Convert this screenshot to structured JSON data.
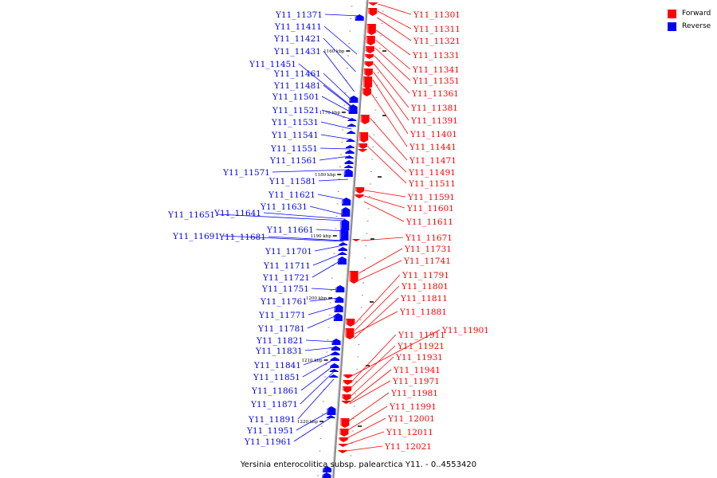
{
  "legend": {
    "forward": {
      "label": "Forward",
      "color": "#ff0000"
    },
    "reverse": {
      "label": "Reverse",
      "color": "#0000ff"
    }
  },
  "caption": "Yersinia enterocolitica subsp. palearctica Y11. - 0..4553420",
  "ticks": [
    "1160 kbp",
    "1170 kbp",
    "1180 kbp",
    "1190 kbp",
    "1200 kbp",
    "1210 kbp",
    "1220 kbp"
  ],
  "reverse_labels": [
    "Y11_11371",
    "Y11_11411",
    "Y11_11421",
    "Y11_11431",
    "Y11_11451",
    "Y11_11461",
    "Y11_11481",
    "Y11_11501",
    "Y11_11521",
    "Y11_11531",
    "Y11_11541",
    "Y11_11551",
    "Y11_11561",
    "Y11_11571",
    "Y11_11581",
    "Y11_11621",
    "Y11_11631",
    "Y11_11641",
    "Y11_11651",
    "Y11_11661",
    "Y11_11681",
    "Y11_11691",
    "Y11_11701",
    "Y11_11711",
    "Y11_11721",
    "Y11_11751",
    "Y11_11761",
    "Y11_11771",
    "Y11_11781",
    "Y11_11821",
    "Y11_11831",
    "Y11_11841",
    "Y11_11851",
    "Y11_11861",
    "Y11_11871",
    "Y11_11891",
    "Y11_11951",
    "Y11_11961"
  ],
  "forward_labels": [
    "Y11_11301",
    "Y11_11311",
    "Y11_11321",
    "Y11_11331",
    "Y11_11341",
    "Y11_11351",
    "Y11_11361",
    "Y11_11381",
    "Y11_11391",
    "Y11_11401",
    "Y11_11441",
    "Y11_11471",
    "Y11_11491",
    "Y11_11511",
    "Y11_11591",
    "Y11_11601",
    "Y11_11611",
    "Y11_11671",
    "Y11_11731",
    "Y11_11741",
    "Y11_11791",
    "Y11_11801",
    "Y11_11811",
    "Y11_11881",
    "Y11_11901",
    "Y11_11911",
    "Y11_11921",
    "Y11_11931",
    "Y11_11941",
    "Y11_11971",
    "Y11_11981",
    "Y11_11991",
    "Y11_12001",
    "Y11_12011",
    "Y11_12021"
  ]
}
